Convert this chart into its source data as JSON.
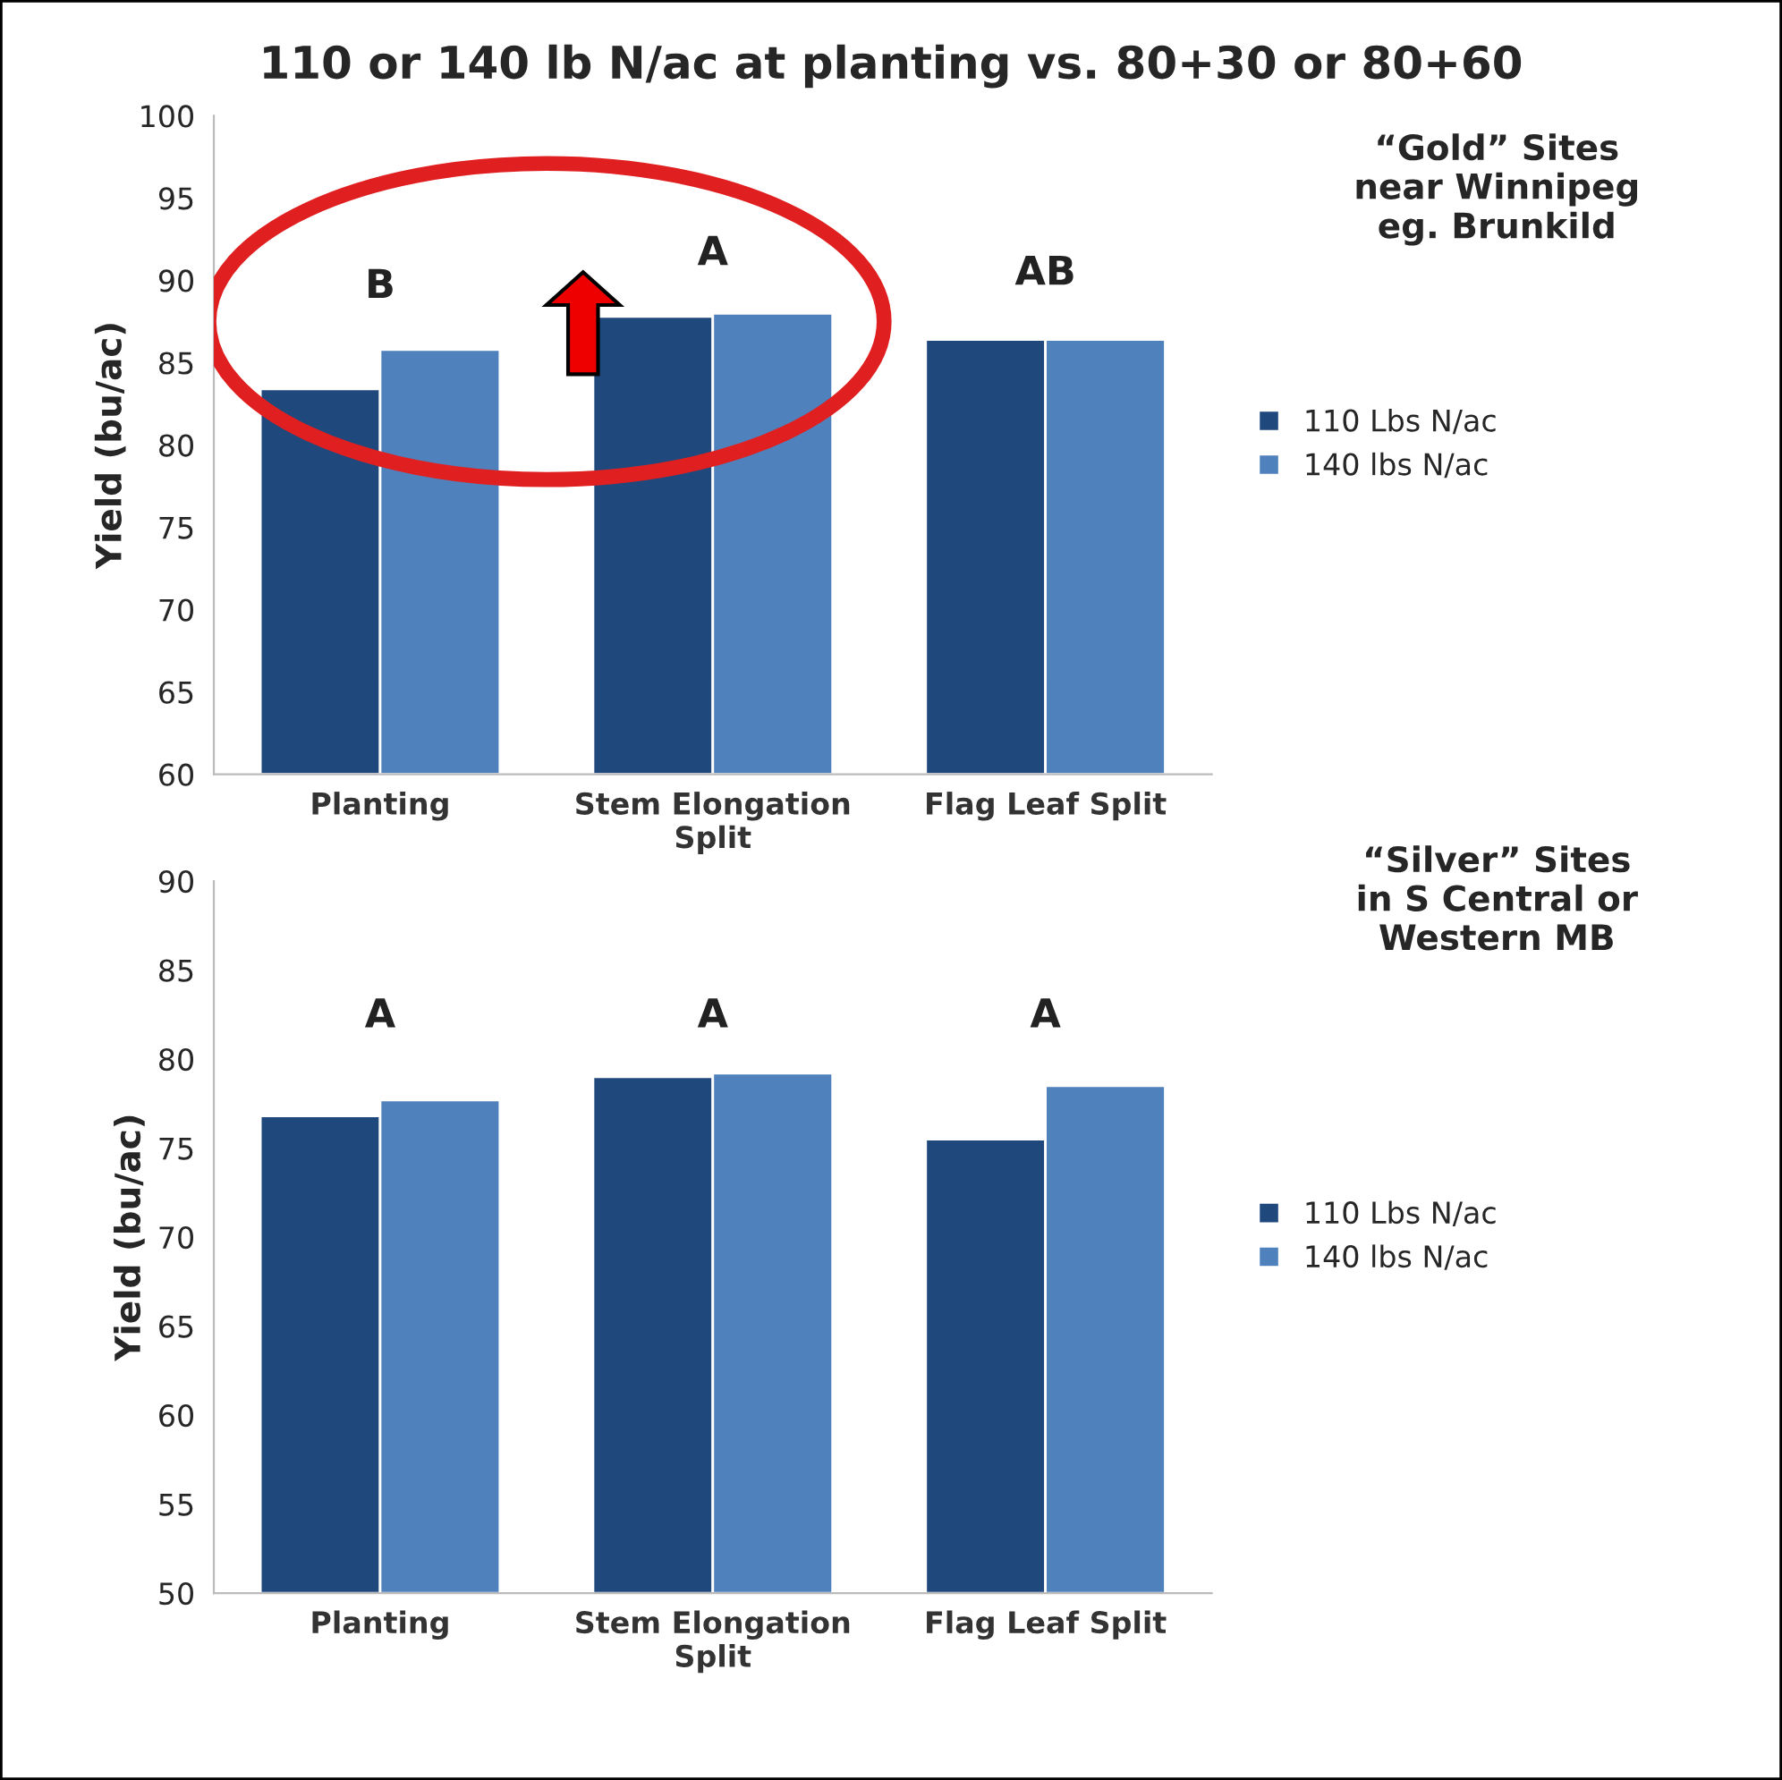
{
  "chart_data": [
    {
      "type": "bar",
      "title": "110 or 140 lb N/ac at planting vs. 80+30 or 80+60",
      "ylabel": "Yield (bu/ac)",
      "categories": [
        "Planting",
        "Stem Elongation\nSplit",
        "Flag Leaf Split"
      ],
      "series": [
        {
          "name": "110 Lbs N/ac",
          "color": "#1f487c",
          "values": [
            83.4,
            87.8,
            86.4
          ]
        },
        {
          "name": "140 lbs N/ac",
          "color": "#4f81bd",
          "values": [
            85.8,
            88.0,
            86.4
          ]
        }
      ],
      "ylim": [
        60,
        100
      ],
      "yticks": [
        60,
        65,
        70,
        75,
        80,
        85,
        90,
        95,
        100
      ],
      "legend": "right",
      "grid": false,
      "annotations": [
        "B",
        "A",
        "AB",
        "“Gold” Sites\nnear Winnipeg\neg. Brunkild"
      ]
    },
    {
      "type": "bar",
      "ylabel": "Yield (bu/ac)",
      "categories": [
        "Planting",
        "Stem Elongation\nSplit",
        "Flag Leaf Split"
      ],
      "series": [
        {
          "name": "110 Lbs N/ac",
          "color": "#1f487c",
          "values": [
            76.8,
            79.0,
            75.5
          ]
        },
        {
          "name": "140 lbs N/ac",
          "color": "#4f81bd",
          "values": [
            77.7,
            79.2,
            78.5
          ]
        }
      ],
      "ylim": [
        50,
        90
      ],
      "yticks": [
        50,
        55,
        60,
        65,
        70,
        75,
        80,
        85,
        90
      ],
      "legend": "right",
      "grid": false,
      "annotations": [
        "A",
        "A",
        "A",
        "“Silver” Sites\nin S Central or\nWestern MB"
      ]
    }
  ]
}
